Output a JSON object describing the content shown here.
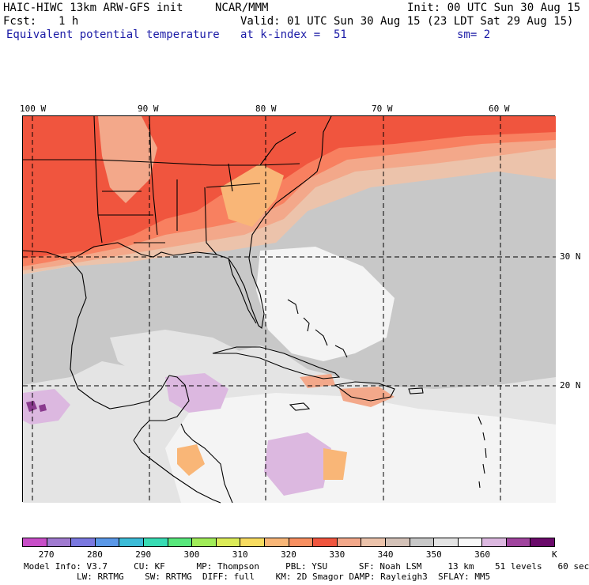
{
  "header": {
    "model": "HAIC-HIWC 13km ARW-GFS init",
    "org": "NCAR/MMM",
    "init": "Init: 00 UTC Sun 30 Aug 15",
    "fcst_label": "Fcst:",
    "fcst_value": "1 h",
    "valid": "Valid: 01 UTC Sun 30 Aug 15 (23 LDT Sat 29 Aug 15)",
    "field": "Equivalent potential temperature",
    "level": "at k-index =  51",
    "smoothing": "sm= 2"
  },
  "map": {
    "lon_labels": [
      "100 W",
      "90 W",
      "80 W",
      "70 W",
      "60 W"
    ],
    "lat_labels": [
      "30 N",
      "20 N"
    ],
    "palette": {
      "warm_dark": "#f0553e",
      "warm_mid": "#f88060",
      "warm_light": "#f3a88a",
      "peach": "#ecc3ab",
      "orange": "#f9b677",
      "gray": "#c8c8c8",
      "gray_light": "#e4e4e4",
      "white": "#f4f4f4",
      "lavender": "#dcb8e0",
      "purple": "#8a3a8e"
    }
  },
  "colorbar": {
    "colors": [
      "#c84ec8",
      "#a07ad0",
      "#7a78e0",
      "#5a98e8",
      "#3cbcd8",
      "#38dcb4",
      "#58e87c",
      "#a0ec58",
      "#dcec58",
      "#f8dc60",
      "#f9b677",
      "#f88f60",
      "#f0553e",
      "#f3a88a",
      "#ecc3ab",
      "#d4c2b8",
      "#c8c8c8",
      "#e4e4e4",
      "#f8f8f8",
      "#dcb8e0",
      "#a0449e",
      "#6a0a6a"
    ],
    "labels": [
      "270",
      "280",
      "290",
      "300",
      "310",
      "320",
      "330",
      "340",
      "350",
      "360"
    ],
    "unit": "K"
  },
  "footer": {
    "line1": "Model Info: V3.7     CU: KF      MP: Thompson     PBL: YSU      SF: Noah LSM     13 km    51 levels   60 sec",
    "line2": "LW: RRTMG    SW: RRTMG  DIFF: full    KM: 2D Smagor DAMP: Rayleigh3  SFLAY: MM5"
  }
}
